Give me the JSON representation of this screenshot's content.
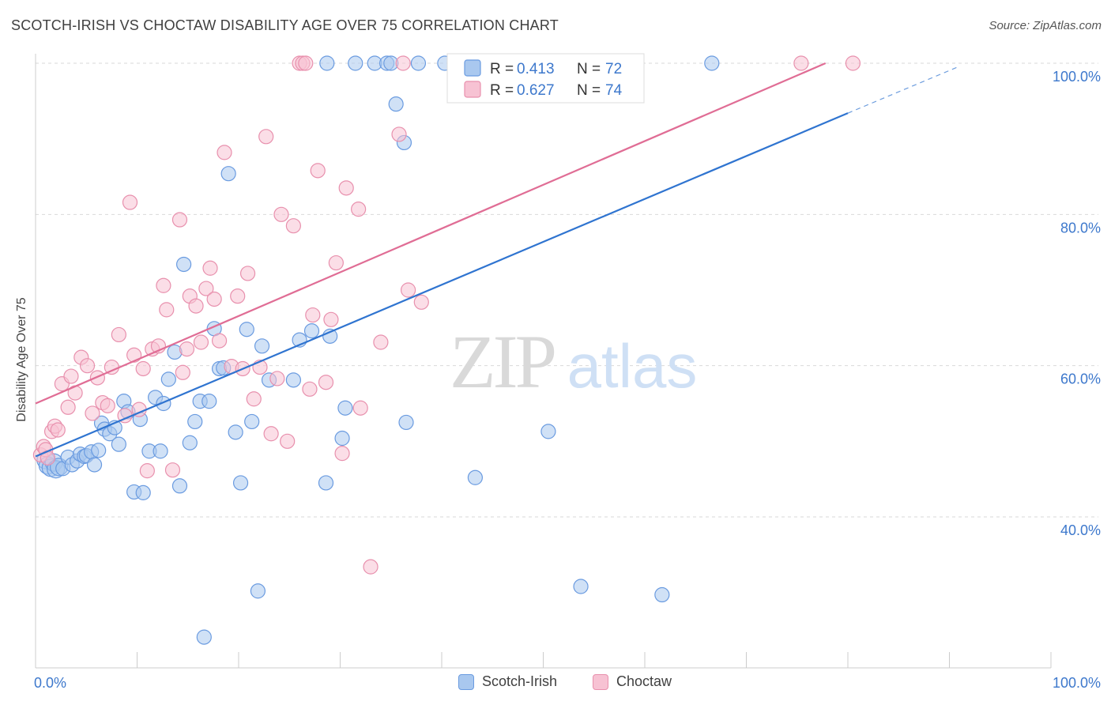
{
  "header": {
    "title": "SCOTCH-IRISH VS CHOCTAW DISABILITY AGE OVER 75 CORRELATION CHART",
    "source": "Source: ZipAtlas.com"
  },
  "watermark": {
    "zip": "ZIP",
    "atlas": "atlas"
  },
  "colors": {
    "blue_fill": "#a9c8ef",
    "blue_stroke": "#6a9be0",
    "blue_line": "#2f74d0",
    "pink_fill": "#f7c2d3",
    "pink_stroke": "#e890ad",
    "pink_line": "#e06d95",
    "tick_text": "#3d78cc",
    "grid": "#d9d9d9"
  },
  "legend_top": [
    {
      "r_label": "R =",
      "r_value": "0.413",
      "n_label": "N =",
      "n_value": "72"
    },
    {
      "r_label": "R =",
      "r_value": "0.627",
      "n_label": "N =",
      "n_value": "74"
    }
  ],
  "chart_data": {
    "type": "scatter",
    "title": "SCOTCH-IRISH VS CHOCTAW DISABILITY AGE OVER 75 CORRELATION CHART",
    "xlabel": "",
    "ylabel": "Disability Age Over 75",
    "xlim": [
      0,
      100
    ],
    "ylim": [
      20,
      100
    ],
    "x_tick_labels": [
      "0.0%",
      "100.0%"
    ],
    "y_ticks": [
      40,
      60,
      80,
      100
    ],
    "y_tick_labels": [
      "40.0%",
      "60.0%",
      "80.0%",
      "100.0%"
    ],
    "grid": true,
    "legend_position": "top-center",
    "series": [
      {
        "name": "Scotch-Irish",
        "R": 0.413,
        "N": 72,
        "trend": {
          "x": [
            0,
            80,
            91
          ],
          "y": [
            48.0,
            93.4,
            99.6
          ],
          "solid_until": 80
        },
        "points": [
          [
            1.0,
            47.5
          ],
          [
            1.2,
            46.8
          ],
          [
            1.5,
            46.5
          ],
          [
            1.8,
            47.2
          ],
          [
            2.0,
            46.3
          ],
          [
            2.3,
            46.6
          ],
          [
            2.7,
            46.4
          ],
          [
            3.2,
            47.9
          ],
          [
            3.6,
            46.9
          ],
          [
            4.1,
            47.4
          ],
          [
            4.4,
            48.3
          ],
          [
            4.8,
            48.0
          ],
          [
            5.0,
            48.1
          ],
          [
            5.5,
            48.6
          ],
          [
            5.8,
            46.9
          ],
          [
            6.2,
            48.8
          ],
          [
            6.5,
            52.4
          ],
          [
            6.8,
            51.6
          ],
          [
            7.3,
            51.0
          ],
          [
            7.8,
            51.8
          ],
          [
            8.2,
            49.6
          ],
          [
            8.7,
            55.3
          ],
          [
            9.1,
            53.9
          ],
          [
            9.7,
            43.3
          ],
          [
            10.3,
            52.9
          ],
          [
            10.6,
            43.2
          ],
          [
            11.2,
            48.7
          ],
          [
            11.8,
            55.8
          ],
          [
            12.3,
            48.7
          ],
          [
            12.6,
            55.0
          ],
          [
            13.1,
            58.2
          ],
          [
            13.7,
            61.8
          ],
          [
            14.2,
            44.1
          ],
          [
            14.6,
            73.4
          ],
          [
            15.2,
            49.8
          ],
          [
            15.7,
            52.6
          ],
          [
            16.2,
            55.3
          ],
          [
            16.6,
            24.1
          ],
          [
            17.1,
            55.3
          ],
          [
            17.6,
            64.9
          ],
          [
            18.1,
            59.6
          ],
          [
            18.5,
            59.7
          ],
          [
            19.0,
            85.4
          ],
          [
            19.7,
            51.2
          ],
          [
            20.2,
            44.5
          ],
          [
            20.8,
            64.8
          ],
          [
            21.3,
            52.6
          ],
          [
            21.9,
            30.2
          ],
          [
            22.3,
            62.6
          ],
          [
            23.0,
            58.1
          ],
          [
            25.4,
            58.1
          ],
          [
            26.0,
            63.4
          ],
          [
            27.2,
            64.6
          ],
          [
            28.7,
            100.0
          ],
          [
            28.6,
            44.5
          ],
          [
            29.0,
            63.9
          ],
          [
            30.2,
            50.4
          ],
          [
            30.5,
            54.4
          ],
          [
            31.5,
            100.0
          ],
          [
            33.4,
            100.0
          ],
          [
            34.6,
            100.0
          ],
          [
            35.0,
            100.0
          ],
          [
            37.7,
            100.0
          ],
          [
            35.5,
            94.6
          ],
          [
            36.3,
            89.5
          ],
          [
            36.5,
            52.5
          ],
          [
            40.3,
            100.0
          ],
          [
            43.3,
            45.2
          ],
          [
            50.5,
            51.3
          ],
          [
            53.7,
            30.8
          ],
          [
            61.7,
            29.7
          ],
          [
            66.6,
            100.0
          ]
        ]
      },
      {
        "name": "Choctaw",
        "R": 0.627,
        "N": 74,
        "trend": {
          "x": [
            0,
            77.8
          ],
          "y": [
            55.0,
            100.0
          ]
        },
        "points": [
          [
            0.5,
            48.2
          ],
          [
            0.8,
            49.3
          ],
          [
            1.0,
            48.9
          ],
          [
            1.2,
            47.8
          ],
          [
            1.6,
            51.3
          ],
          [
            1.9,
            52.0
          ],
          [
            2.2,
            51.5
          ],
          [
            2.6,
            57.6
          ],
          [
            3.2,
            54.5
          ],
          [
            3.5,
            58.6
          ],
          [
            3.9,
            56.4
          ],
          [
            4.5,
            61.1
          ],
          [
            5.1,
            60.0
          ],
          [
            5.6,
            53.7
          ],
          [
            6.1,
            58.4
          ],
          [
            6.6,
            55.1
          ],
          [
            7.1,
            54.7
          ],
          [
            7.5,
            59.8
          ],
          [
            8.2,
            64.1
          ],
          [
            8.8,
            53.4
          ],
          [
            9.3,
            81.6
          ],
          [
            9.7,
            61.4
          ],
          [
            10.2,
            54.2
          ],
          [
            10.6,
            59.6
          ],
          [
            11.0,
            46.1
          ],
          [
            11.5,
            62.2
          ],
          [
            12.1,
            62.6
          ],
          [
            12.6,
            70.6
          ],
          [
            12.9,
            67.4
          ],
          [
            13.5,
            46.2
          ],
          [
            14.2,
            79.3
          ],
          [
            14.5,
            59.1
          ],
          [
            14.9,
            62.2
          ],
          [
            15.2,
            69.2
          ],
          [
            15.8,
            67.9
          ],
          [
            16.3,
            63.1
          ],
          [
            16.8,
            70.2
          ],
          [
            17.2,
            72.9
          ],
          [
            17.6,
            68.8
          ],
          [
            18.1,
            63.3
          ],
          [
            18.6,
            88.2
          ],
          [
            19.3,
            59.9
          ],
          [
            19.9,
            69.2
          ],
          [
            20.4,
            59.6
          ],
          [
            20.9,
            72.2
          ],
          [
            21.5,
            55.6
          ],
          [
            22.1,
            59.8
          ],
          [
            22.7,
            90.3
          ],
          [
            23.2,
            51.0
          ],
          [
            23.8,
            58.3
          ],
          [
            24.2,
            80.0
          ],
          [
            24.8,
            50.0
          ],
          [
            25.4,
            78.5
          ],
          [
            26.0,
            100.0
          ],
          [
            26.3,
            100.0
          ],
          [
            26.6,
            100.0
          ],
          [
            27.0,
            56.9
          ],
          [
            27.3,
            66.7
          ],
          [
            27.8,
            85.8
          ],
          [
            28.6,
            57.8
          ],
          [
            29.1,
            66.1
          ],
          [
            29.6,
            73.6
          ],
          [
            30.2,
            48.4
          ],
          [
            30.6,
            83.5
          ],
          [
            31.8,
            80.7
          ],
          [
            32.0,
            54.4
          ],
          [
            33.0,
            33.4
          ],
          [
            34.0,
            63.1
          ],
          [
            35.8,
            90.6
          ],
          [
            36.2,
            100.0
          ],
          [
            36.7,
            70.0
          ],
          [
            38.0,
            68.4
          ],
          [
            75.4,
            100.0
          ],
          [
            80.5,
            100.0
          ]
        ]
      }
    ]
  }
}
